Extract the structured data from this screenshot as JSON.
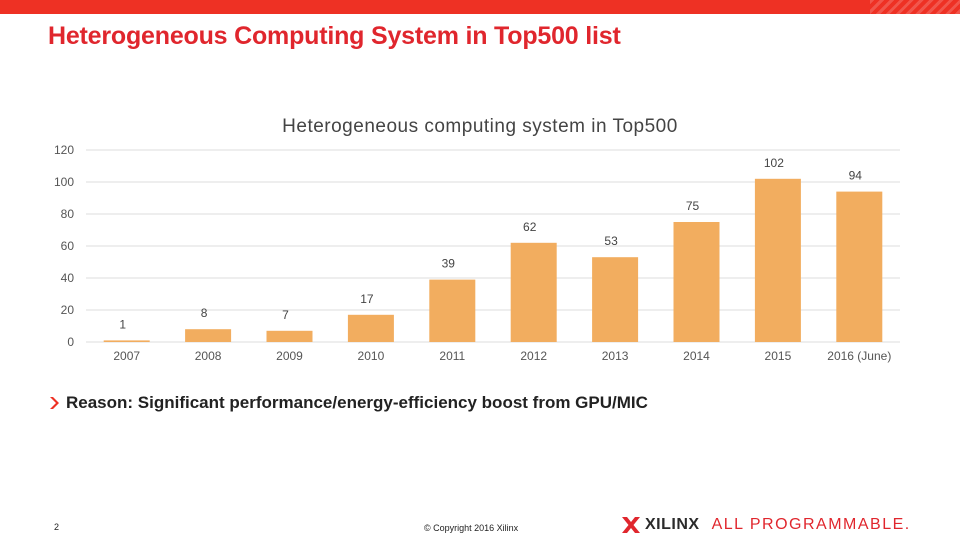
{
  "slide": {
    "title": "Heterogeneous Computing System in Top500 list",
    "reason": "Reason: Significant performance/energy-efficiency boost from GPU/MIC",
    "page_number": "2",
    "copyright": "© Copyright 2016 Xilinx",
    "logo_word": "XILINX",
    "logo_tagline": "ALL PROGRAMMABLE."
  },
  "colors": {
    "accent": "#ee3124",
    "title_red": "#e0262d",
    "bar": "#f2ad5f",
    "grid": "#dddddd"
  },
  "icons": {
    "bullet": "chevron-right-icon",
    "logo": "xilinx-logo-icon"
  },
  "chart_data": {
    "type": "bar",
    "title": "Heterogeneous computing system in Top500",
    "categories": [
      "2007",
      "2008",
      "2009",
      "2010",
      "2011",
      "2012",
      "2013",
      "2014",
      "2015",
      "2016 (June)"
    ],
    "values": [
      1,
      8,
      7,
      17,
      39,
      62,
      53,
      75,
      102,
      94
    ],
    "ylim": [
      0,
      120
    ],
    "yticks": [
      0,
      20,
      40,
      60,
      80,
      100,
      120
    ],
    "grid": true,
    "legend": "none",
    "xlabel": "",
    "ylabel": ""
  }
}
